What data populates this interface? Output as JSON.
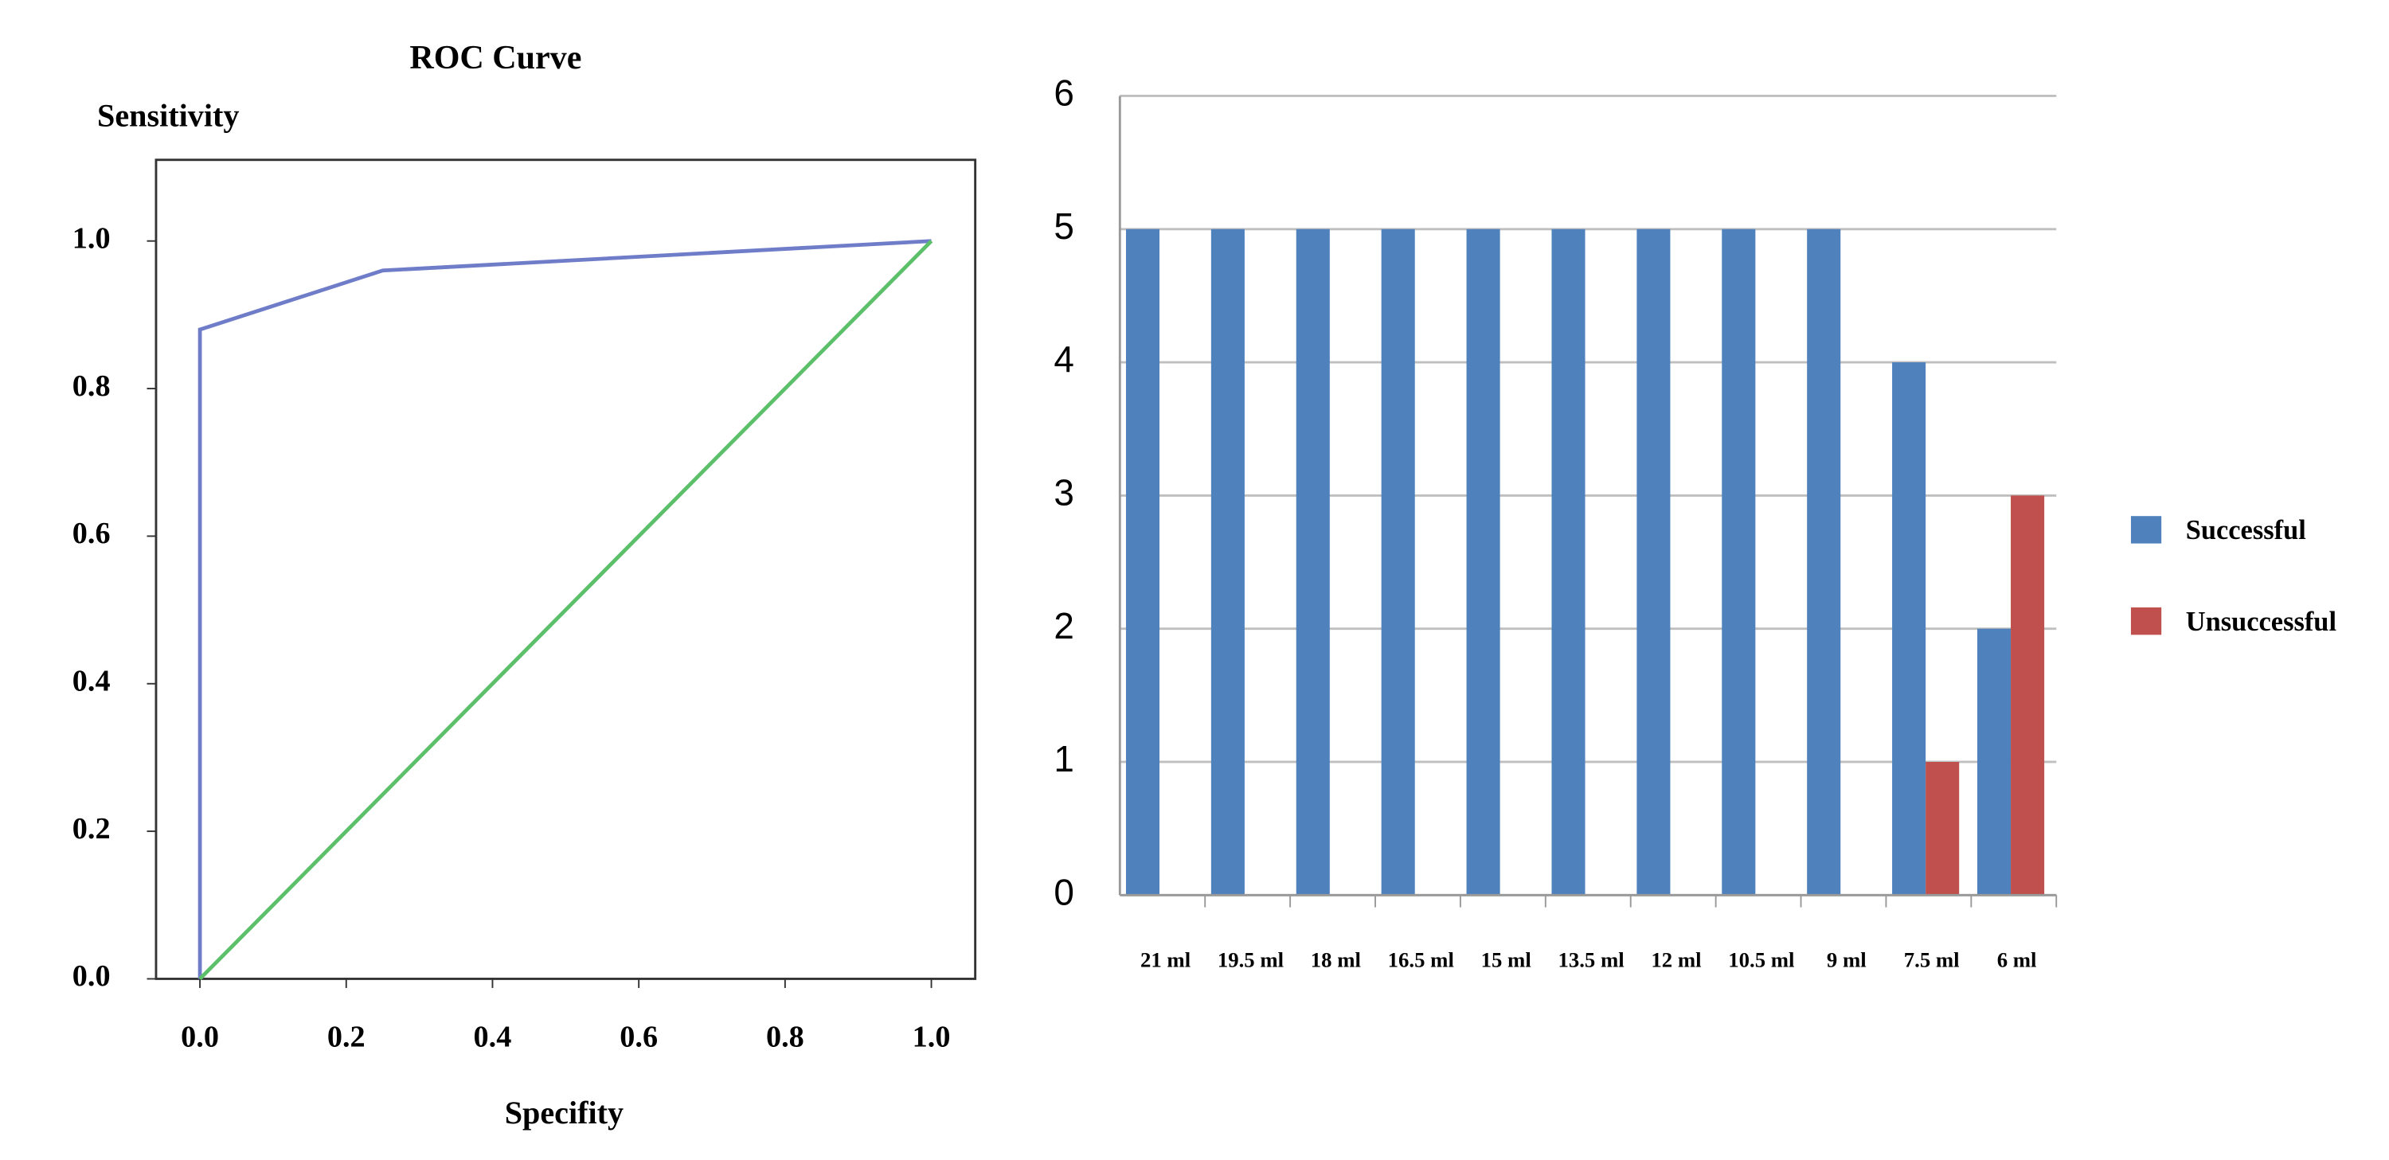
{
  "chart_data": [
    {
      "type": "line",
      "title": "ROC Curve",
      "y_label": "Sensitivity",
      "x_label": "Specifity",
      "xlim": [
        -0.06,
        1.06
      ],
      "ylim": [
        0,
        1.11
      ],
      "xticks": [
        {
          "value": 0,
          "label": "0.0"
        },
        {
          "value": 0.2,
          "label": "0.2"
        },
        {
          "value": 0.4,
          "label": "0.4"
        },
        {
          "value": 0.6,
          "label": "0.6"
        },
        {
          "value": 0.8,
          "label": "0.8"
        },
        {
          "value": 1,
          "label": "1.0"
        }
      ],
      "yticks": [
        {
          "value": 0,
          "label": "0.0"
        },
        {
          "value": 0.2,
          "label": "0.2"
        },
        {
          "value": 0.4,
          "label": "0.4"
        },
        {
          "value": 0.6,
          "label": "0.6"
        },
        {
          "value": 0.8,
          "label": "0.8"
        },
        {
          "value": 1,
          "label": "1.0"
        }
      ],
      "grid": false,
      "series": [
        {
          "color": "#6f7dc8",
          "x": [
            0,
            0,
            0.25,
            1
          ],
          "values": [
            0,
            0.88,
            0.96,
            1
          ]
        },
        {
          "color": "#5cbf6a",
          "x": [
            0,
            1
          ],
          "values": [
            0,
            1
          ]
        }
      ]
    },
    {
      "type": "bar",
      "categories": [
        "21 ml",
        "19.5 ml",
        "18 ml",
        "16.5 ml",
        "15 ml",
        "13.5 ml",
        "12 ml",
        "10.5 ml",
        "9 ml",
        "7.5 ml",
        "6 ml"
      ],
      "ylim": [
        0,
        6
      ],
      "yticks": [
        0,
        1,
        2,
        3,
        4,
        5,
        6
      ],
      "grid": true,
      "legend": "right",
      "series": [
        {
          "name": "Successful",
          "color": "#4f81bd",
          "values": [
            5,
            5,
            5,
            5,
            5,
            5,
            5,
            5,
            5,
            4,
            2
          ]
        },
        {
          "name": "Unsuccessful",
          "color": "#c0504d",
          "values": [
            0,
            0,
            0,
            0,
            0,
            0,
            0,
            0,
            0,
            1,
            3
          ]
        }
      ]
    }
  ]
}
